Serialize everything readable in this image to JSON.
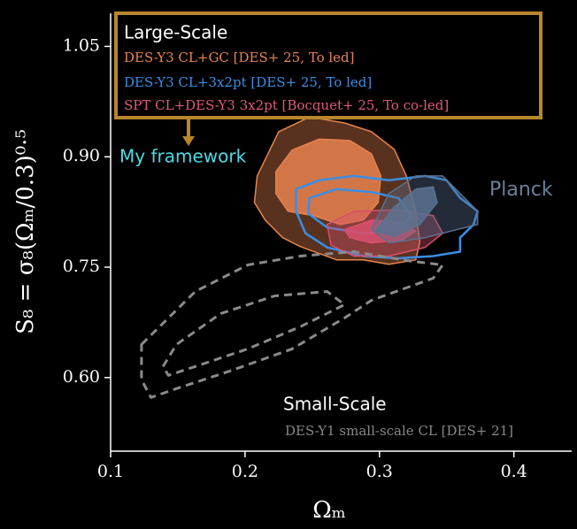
{
  "chart_data": {
    "type": "contour",
    "xlabel": "Ωₘ",
    "ylabel": "S₈ = σ₈(Ωₘ/0.3)⁰·⁵",
    "xlim": [
      0.1,
      0.443
    ],
    "ylim": [
      0.5,
      1.095
    ],
    "xticks": [
      0.1,
      0.2,
      0.3,
      0.4
    ],
    "yticks": [
      {
        "value": 0.6,
        "label": "0.60"
      },
      {
        "value": 0.75,
        "label": "0.75"
      },
      {
        "value": 0.9,
        "label": "0.90"
      },
      {
        "value": 1.05,
        "label": "1.05"
      }
    ],
    "annotations": {
      "large_scale": "Large-Scale",
      "framework": "My framework",
      "small_scale": "Small-Scale"
    },
    "series": [
      {
        "name": "DES-Y3 CL+GC [DES+ 25, To led]",
        "color": "#e8834f",
        "style": "filled",
        "contours": [
          {
            "x": [
              0.209,
              0.225,
              0.248,
              0.274,
              0.294,
              0.311,
              0.32,
              0.327,
              0.33,
              0.327,
              0.307,
              0.288,
              0.268,
              0.241,
              0.228,
              0.215,
              0.207
            ],
            "y": [
              0.874,
              0.934,
              0.954,
              0.946,
              0.934,
              0.91,
              0.874,
              0.826,
              0.784,
              0.76,
              0.754,
              0.76,
              0.76,
              0.778,
              0.79,
              0.814,
              0.838
            ]
          },
          {
            "x": [
              0.223,
              0.235,
              0.255,
              0.278,
              0.294,
              0.301,
              0.299,
              0.288,
              0.271,
              0.251,
              0.232,
              0.223
            ],
            "y": [
              0.88,
              0.909,
              0.924,
              0.922,
              0.904,
              0.874,
              0.838,
              0.814,
              0.808,
              0.82,
              0.826,
              0.85
            ]
          }
        ]
      },
      {
        "name": "DES-Y3 CL+3x2pt [DES+ 25, To led]",
        "color": "#3a8ee6",
        "style": "line",
        "contours": [
          {
            "x": [
              0.238,
              0.255,
              0.281,
              0.307,
              0.334,
              0.35,
              0.36,
              0.373,
              0.37,
              0.36,
              0.36,
              0.34,
              0.314,
              0.288,
              0.261,
              0.245,
              0.238
            ],
            "y": [
              0.856,
              0.868,
              0.874,
              0.868,
              0.874,
              0.868,
              0.844,
              0.826,
              0.808,
              0.79,
              0.771,
              0.765,
              0.762,
              0.765,
              0.777,
              0.796,
              0.826
            ]
          },
          {
            "x": [
              0.248,
              0.268,
              0.294,
              0.314,
              0.324,
              0.314,
              0.288,
              0.261,
              0.247
            ],
            "y": [
              0.844,
              0.856,
              0.852,
              0.844,
              0.82,
              0.799,
              0.796,
              0.804,
              0.823
            ]
          }
        ]
      },
      {
        "name": "SPT CL+DES-Y3 3x2pt [Bocquet+ 25, To co-led]",
        "color": "#d9506e",
        "style": "filled",
        "contours": [
          {
            "x": [
              0.261,
              0.281,
              0.314,
              0.34,
              0.347,
              0.334,
              0.307,
              0.281,
              0.264
            ],
            "y": [
              0.808,
              0.826,
              0.828,
              0.82,
              0.796,
              0.777,
              0.765,
              0.765,
              0.78
            ]
          },
          {
            "x": [
              0.274,
              0.294,
              0.317,
              0.327,
              0.317,
              0.294,
              0.278
            ],
            "y": [
              0.801,
              0.814,
              0.811,
              0.799,
              0.787,
              0.783,
              0.79
            ]
          }
        ]
      },
      {
        "name": "Planck",
        "color": "#5a7290",
        "style": "filled",
        "contours": [
          {
            "x": [
              0.294,
              0.307,
              0.327,
              0.347,
              0.36,
              0.373,
              0.373,
              0.353,
              0.334,
              0.307
            ],
            "y": [
              0.801,
              0.85,
              0.874,
              0.874,
              0.85,
              0.826,
              0.808,
              0.799,
              0.79,
              0.783
            ]
          },
          {
            "x": [
              0.297,
              0.311,
              0.327,
              0.34,
              0.343,
              0.33,
              0.311
            ],
            "y": [
              0.799,
              0.832,
              0.856,
              0.859,
              0.838,
              0.808,
              0.792
            ]
          }
        ]
      },
      {
        "name": "DES-Y1 small-scale CL [DES+ 21]",
        "color": "#8a8a8a",
        "style": "dashed",
        "contours": [
          {
            "x": [
              0.123,
              0.133,
              0.163,
              0.202,
              0.241,
              0.281,
              0.32,
              0.347,
              0.34,
              0.294,
              0.274,
              0.235,
              0.189,
              0.149,
              0.13,
              0.123
            ],
            "y": [
              0.645,
              0.663,
              0.717,
              0.753,
              0.765,
              0.771,
              0.759,
              0.753,
              0.735,
              0.705,
              0.681,
              0.639,
              0.609,
              0.585,
              0.573,
              0.597
            ]
          },
          {
            "x": [
              0.139,
              0.149,
              0.182,
              0.222,
              0.261,
              0.274,
              0.241,
              0.202,
              0.163,
              0.143
            ],
            "y": [
              0.615,
              0.645,
              0.687,
              0.711,
              0.717,
              0.699,
              0.669,
              0.639,
              0.615,
              0.603
            ]
          }
        ]
      }
    ]
  }
}
